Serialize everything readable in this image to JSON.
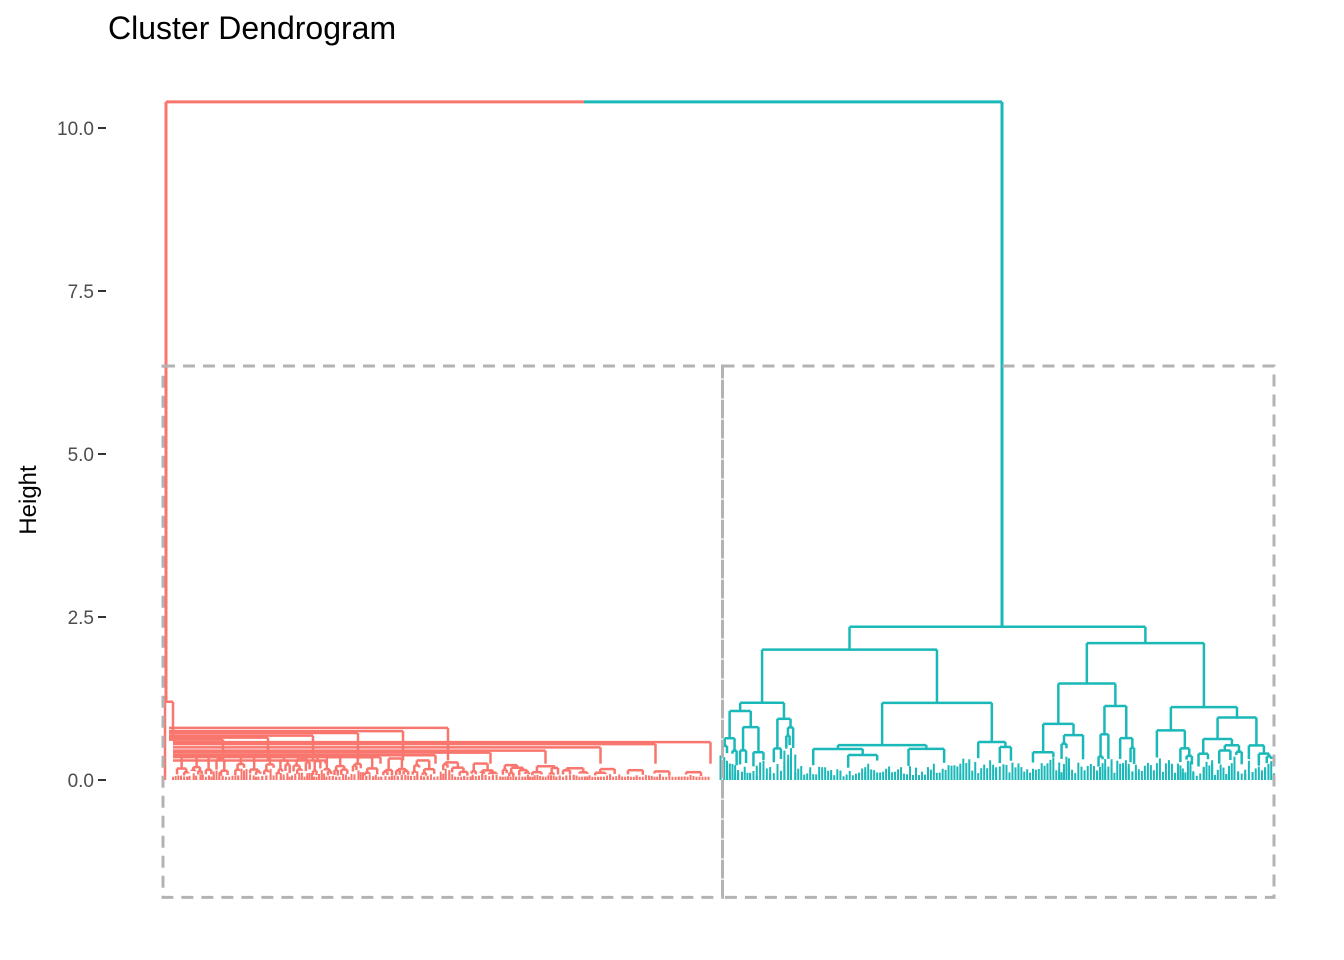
{
  "chart_data": {
    "type": "dendrogram",
    "title": "Cluster Dendrogram",
    "xlabel": "",
    "ylabel": "Height",
    "ylim": [
      -1.8,
      10.4
    ],
    "yticks": [
      0.0,
      2.5,
      5.0,
      7.5,
      10.0
    ],
    "ytick_labels": [
      "0.0",
      "2.5",
      "5.0",
      "7.5",
      "10.0"
    ],
    "grid": false,
    "root_height": 10.4,
    "cut_height": 6.35,
    "clusters": [
      {
        "color": "#F8766D",
        "leaf_fraction": 0.5,
        "top_height": 1.2,
        "sub_merges": [
          0.8,
          0.75,
          0.72,
          0.68,
          0.65,
          0.62,
          0.58,
          0.55,
          0.5,
          0.45,
          0.42,
          0.38,
          0.35,
          0.3,
          0.28,
          0.25,
          0.22,
          0.2
        ]
      },
      {
        "color": "#1AB8B8",
        "leaf_fraction": 0.5,
        "top_height": 2.35,
        "sub_merges": [
          2.0,
          1.95,
          1.85,
          1.8,
          1.7,
          1.6,
          1.45,
          1.4,
          1.35,
          1.3,
          1.2,
          1.15,
          1.05,
          1.0,
          0.95,
          0.9,
          0.85,
          0.8,
          0.75,
          0.7,
          0.65,
          0.6,
          0.5
        ]
      }
    ],
    "cluster_box_color": "#b3b3b3"
  }
}
